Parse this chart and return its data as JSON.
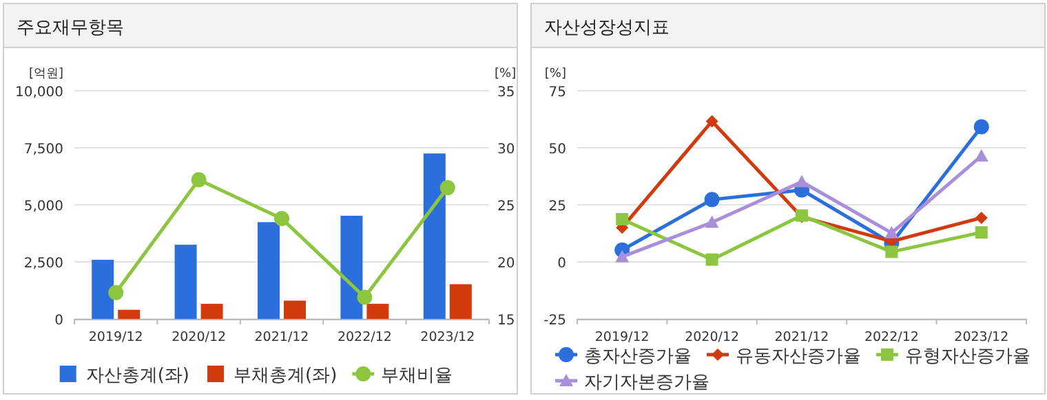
{
  "chart_data": [
    {
      "type": "bar",
      "title": "주요재무항목",
      "ylabel": "[억원]",
      "y2label": "[%]",
      "categories": [
        "2019/12",
        "2020/12",
        "2021/12",
        "2022/12",
        "2023/12"
      ],
      "series": [
        {
          "name": "자산총계(좌)",
          "color": "#2a6fdb",
          "values": [
            2590,
            3250,
            4240,
            4520,
            7250
          ]
        },
        {
          "name": "부채총계(좌)",
          "color": "#d03a0c",
          "values": [
            400,
            660,
            800,
            660,
            1520
          ]
        },
        {
          "name": "부채비율",
          "type": "line",
          "axis": "y2",
          "marker": "circle",
          "color": "#8cc63f",
          "values": [
            17.3,
            27.2,
            23.8,
            16.9,
            26.5
          ]
        }
      ],
      "ylim": [
        0,
        10000
      ],
      "yticks": [
        0,
        {
          "value": 2500,
          "label": "2,500"
        },
        {
          "value": 5000,
          "label": "5,000"
        },
        {
          "value": 7500,
          "label": "7,500"
        },
        {
          "value": 10000,
          "label": "10,000"
        }
      ],
      "y2lim": [
        15,
        35
      ],
      "y2ticks": [
        15,
        20,
        25,
        30,
        35
      ],
      "grid": "y",
      "legend": "bottom"
    },
    {
      "type": "line",
      "title": "자산성장성지표",
      "ylabel": "[%]",
      "categories": [
        "2019/12",
        "2020/12",
        "2021/12",
        "2022/12",
        "2023/12"
      ],
      "series": [
        {
          "name": "총자산증가율",
          "marker": "circle",
          "color": "#2a6fdb",
          "values": [
            5.2,
            27.3,
            31.5,
            8.2,
            59.2
          ]
        },
        {
          "name": "유동자산증가율",
          "marker": "diamond",
          "color": "#d03a0c",
          "values": [
            15,
            61.6,
            19.7,
            9,
            19.3
          ]
        },
        {
          "name": "유형자산증가율",
          "marker": "square",
          "color": "#8cc63f",
          "values": [
            18.7,
            1,
            20.3,
            4.4,
            12.9
          ]
        },
        {
          "name": "자기자본증가율",
          "marker": "triangle",
          "color": "#a98fd9",
          "values": [
            2.2,
            17.3,
            35.1,
            12.7,
            46.4
          ]
        }
      ],
      "ylim": [
        -25,
        75
      ],
      "yticks": [
        -25,
        0,
        25,
        50,
        75
      ],
      "grid": "y",
      "legend": "bottom"
    }
  ]
}
